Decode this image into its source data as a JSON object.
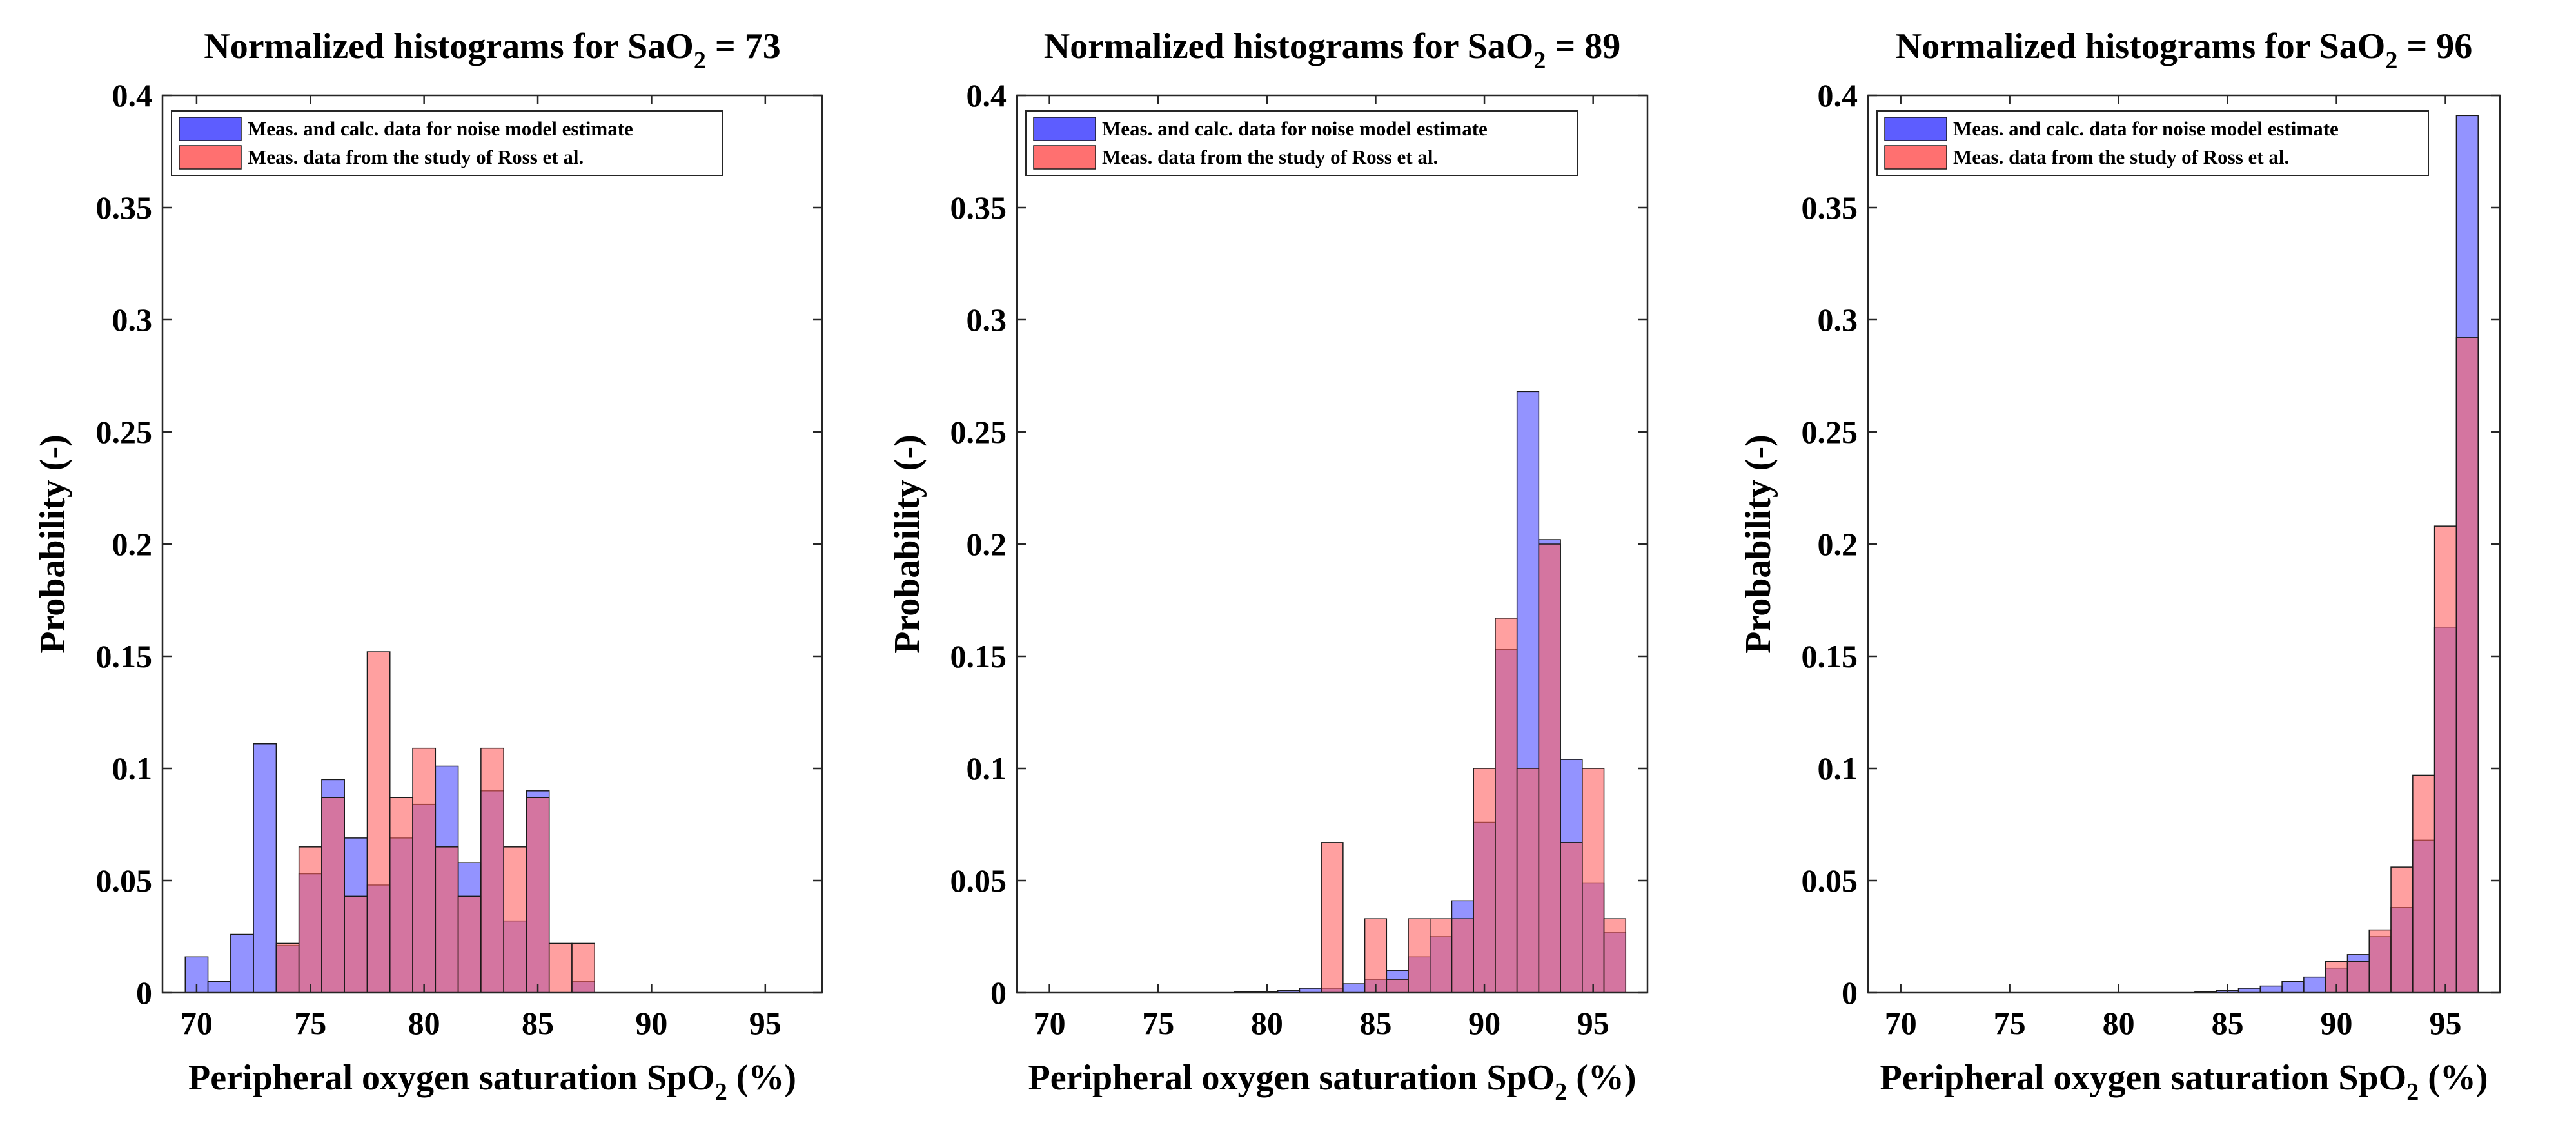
{
  "chart_data": [
    {
      "type": "bar",
      "title_prefix": "Normalized histograms for SaO",
      "title_sub": "2",
      "title_suffix": " = 73",
      "xlabel_prefix": "Peripheral oxygen saturation SpO",
      "xlabel_sub": "2",
      "xlabel_suffix": " (%)",
      "ylabel": "Probability (-)",
      "xlim": [
        68.5,
        97.5
      ],
      "ylim": [
        0,
        0.4
      ],
      "xticks": [
        70,
        75,
        80,
        85,
        90,
        95
      ],
      "yticks": [
        0,
        0.05,
        0.1,
        0.15,
        0.2,
        0.25,
        0.3,
        0.35,
        0.4
      ],
      "ytick_labels": [
        "0",
        "0.05",
        "0.1",
        "0.15",
        "0.2",
        "0.25",
        "0.3",
        "0.35",
        "0.4"
      ],
      "legend": [
        "Meas. and calc. data for noise model estimate",
        "Meas. data from the study of Ross et al."
      ],
      "legend_position": "top-left",
      "series": [
        {
          "name": "Meas. and calc. data for noise model estimate",
          "color": "#4b4bff",
          "bins": [
            70,
            71,
            72,
            73,
            74,
            75,
            76,
            77,
            78,
            79,
            80,
            81,
            82,
            83,
            84,
            85,
            86,
            87
          ],
          "values": [
            0.016,
            0.005,
            0.026,
            0.111,
            0.021,
            0.053,
            0.095,
            0.069,
            0.048,
            0.069,
            0.084,
            0.101,
            0.058,
            0.09,
            0.032,
            0.09,
            0,
            0.005
          ]
        },
        {
          "name": "Meas. data from the study of Ross et al.",
          "color": "#ff6060",
          "bins": [
            74,
            75,
            76,
            77,
            78,
            79,
            80,
            81,
            82,
            83,
            84,
            85,
            86,
            87
          ],
          "values": [
            0.022,
            0.065,
            0.087,
            0.043,
            0.152,
            0.087,
            0.109,
            0.065,
            0.043,
            0.109,
            0.065,
            0.087,
            0.022,
            0.022
          ]
        }
      ]
    },
    {
      "type": "bar",
      "title_prefix": "Normalized histograms for SaO",
      "title_sub": "2",
      "title_suffix": " = 89",
      "xlabel_prefix": "Peripheral oxygen saturation SpO",
      "xlabel_sub": "2",
      "xlabel_suffix": " (%)",
      "ylabel": "Probability (-)",
      "xlim": [
        68.5,
        97.5
      ],
      "ylim": [
        0,
        0.4
      ],
      "xticks": [
        70,
        75,
        80,
        85,
        90,
        95
      ],
      "yticks": [
        0,
        0.05,
        0.1,
        0.15,
        0.2,
        0.25,
        0.3,
        0.35,
        0.4
      ],
      "ytick_labels": [
        "0",
        "0.05",
        "0.1",
        "0.15",
        "0.2",
        "0.25",
        "0.3",
        "0.35",
        "0.4"
      ],
      "legend": [
        "Meas. and calc. data for noise model estimate",
        "Meas. data from the study of Ross et al."
      ],
      "legend_position": "top-left",
      "series": [
        {
          "name": "Meas. and calc. data for noise model estimate",
          "color": "#4b4bff",
          "bins": [
            79,
            80,
            81,
            82,
            83,
            84,
            85,
            86,
            87,
            88,
            89,
            90,
            91,
            92,
            93,
            94,
            95,
            96
          ],
          "values": [
            0.0005,
            0.0005,
            0.001,
            0.002,
            0.002,
            0.004,
            0.006,
            0.01,
            0.016,
            0.025,
            0.041,
            0.076,
            0.153,
            0.268,
            0.202,
            0.104,
            0.049,
            0.027
          ]
        },
        {
          "name": "Meas. data from the study of Ross et al.",
          "color": "#ff6060",
          "bins": [
            83,
            84,
            85,
            86,
            87,
            88,
            89,
            90,
            91,
            92,
            93,
            94,
            95,
            96
          ],
          "values": [
            0.067,
            0,
            0.033,
            0.006,
            0.033,
            0.033,
            0.033,
            0.1,
            0.167,
            0.1,
            0.2,
            0.067,
            0.1,
            0.033
          ]
        }
      ]
    },
    {
      "type": "bar",
      "title_prefix": "Normalized histograms for SaO",
      "title_sub": "2",
      "title_suffix": " = 96",
      "xlabel_prefix": "Peripheral oxygen saturation SpO",
      "xlabel_sub": "2",
      "xlabel_suffix": " (%)",
      "ylabel": "Probability (-)",
      "xlim": [
        68.5,
        97.5
      ],
      "ylim": [
        0,
        0.4
      ],
      "xticks": [
        70,
        75,
        80,
        85,
        90,
        95
      ],
      "yticks": [
        0,
        0.05,
        0.1,
        0.15,
        0.2,
        0.25,
        0.3,
        0.35,
        0.4
      ],
      "ytick_labels": [
        "0",
        "0.05",
        "0.1",
        "0.15",
        "0.2",
        "0.25",
        "0.3",
        "0.35",
        "0.4"
      ],
      "legend": [
        "Meas. and calc. data for noise model estimate",
        "Meas. data from the study of Ross et al."
      ],
      "legend_position": "top-left",
      "series": [
        {
          "name": "Meas. and calc. data for noise model estimate",
          "color": "#4b4bff",
          "bins": [
            84,
            85,
            86,
            87,
            88,
            89,
            90,
            91,
            92,
            93,
            94,
            95,
            96
          ],
          "values": [
            0.0005,
            0.001,
            0.002,
            0.003,
            0.005,
            0.007,
            0.011,
            0.017,
            0.025,
            0.038,
            0.068,
            0.163,
            0.391
          ]
        },
        {
          "name": "Meas. data from the study of Ross et al.",
          "color": "#ff6060",
          "bins": [
            90,
            91,
            92,
            93,
            94,
            95,
            96
          ],
          "values": [
            0.014,
            0.014,
            0.028,
            0.056,
            0.097,
            0.208,
            0.292
          ]
        }
      ]
    }
  ]
}
